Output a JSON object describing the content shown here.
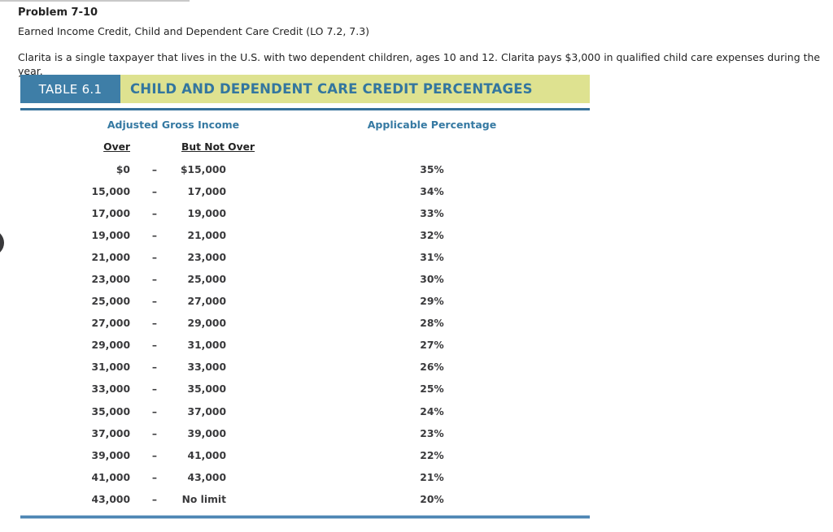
{
  "header": {
    "problem_title": "Problem 7-10",
    "problem_subtitle": "Earned Income Credit, Child and Dependent Care Credit (LO 7.2, 7.3)",
    "scenario": "Clarita is a single taxpayer that lives in the U.S. with two dependent children, ages 10 and 12. Clarita pays $3,000 in qualified child care expenses during the year."
  },
  "table": {
    "badge_label": "TABLE 6.1",
    "title": "CHILD AND DEPENDENT CARE CREDIT PERCENTAGES",
    "group_header_agi": "Adjusted Gross Income",
    "group_header_percentage": "Applicable Percentage",
    "column_header_over": "Over",
    "column_header_but_not_over": "But Not Over",
    "dash": "–",
    "rows": [
      {
        "over": "$0",
        "but_not_over": "$15,000",
        "percentage": "35%"
      },
      {
        "over": "15,000",
        "but_not_over": "17,000",
        "percentage": "34%"
      },
      {
        "over": "17,000",
        "but_not_over": "19,000",
        "percentage": "33%"
      },
      {
        "over": "19,000",
        "but_not_over": "21,000",
        "percentage": "32%"
      },
      {
        "over": "21,000",
        "but_not_over": "23,000",
        "percentage": "31%"
      },
      {
        "over": "23,000",
        "but_not_over": "25,000",
        "percentage": "30%"
      },
      {
        "over": "25,000",
        "but_not_over": "27,000",
        "percentage": "29%"
      },
      {
        "over": "27,000",
        "but_not_over": "29,000",
        "percentage": "28%"
      },
      {
        "over": "29,000",
        "but_not_over": "31,000",
        "percentage": "27%"
      },
      {
        "over": "31,000",
        "but_not_over": "33,000",
        "percentage": "26%"
      },
      {
        "over": "33,000",
        "but_not_over": "35,000",
        "percentage": "25%"
      },
      {
        "over": "35,000",
        "but_not_over": "37,000",
        "percentage": "24%"
      },
      {
        "over": "37,000",
        "but_not_over": "39,000",
        "percentage": "23%"
      },
      {
        "over": "39,000",
        "but_not_over": "41,000",
        "percentage": "22%"
      },
      {
        "over": "41,000",
        "but_not_over": "43,000",
        "percentage": "21%"
      },
      {
        "over": "43,000",
        "but_not_over": "No limit",
        "percentage": "20%"
      }
    ]
  },
  "colors": {
    "badge_bg": "#3e7ea7",
    "strip_bg": "#dee290",
    "strip_title_text": "#33769f",
    "heading_text": "#3579a2",
    "rule_top": "#35719a",
    "rule_bottom": "#4e86b4",
    "value_text": "#3a3a3c"
  }
}
